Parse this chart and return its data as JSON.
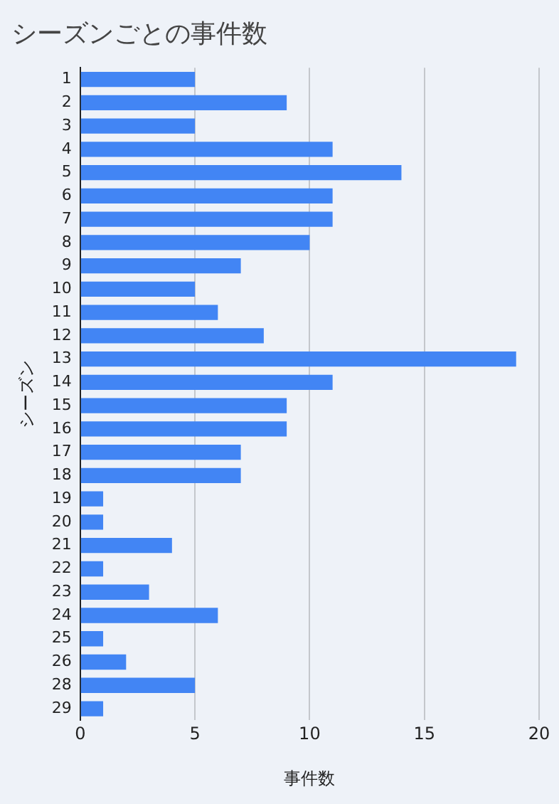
{
  "chart_data": {
    "type": "bar",
    "orientation": "horizontal",
    "title": "シーズンごとの事件数",
    "xlabel": "事件数",
    "ylabel": "シーズン",
    "categories": [
      "1",
      "2",
      "3",
      "4",
      "5",
      "6",
      "7",
      "8",
      "9",
      "10",
      "11",
      "12",
      "13",
      "14",
      "15",
      "16",
      "17",
      "18",
      "19",
      "20",
      "21",
      "22",
      "23",
      "24",
      "25",
      "26",
      "28",
      "29"
    ],
    "values": [
      5,
      9,
      5,
      11,
      14,
      11,
      11,
      10,
      7,
      5,
      6,
      8,
      19,
      11,
      9,
      9,
      7,
      7,
      1,
      1,
      4,
      1,
      3,
      6,
      1,
      2,
      5,
      1
    ],
    "color": "#4285f4",
    "xlim": [
      0,
      20
    ],
    "xticks": [
      0,
      5,
      10,
      15,
      20
    ],
    "grid": "x",
    "legend": false
  }
}
